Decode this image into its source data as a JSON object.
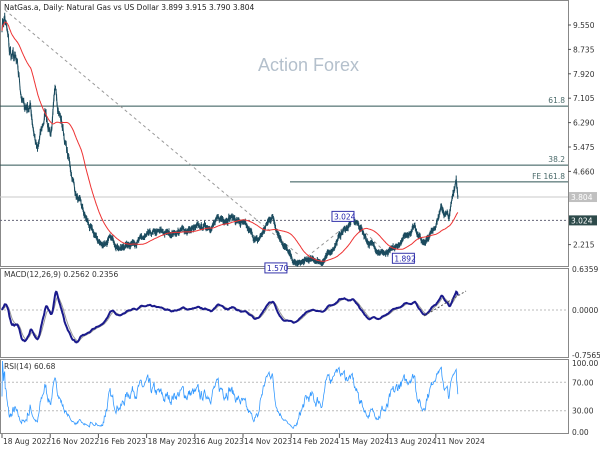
{
  "header": {
    "title": "NatGas.a, Daily:  Natural Gas vs US Dollar  3.899 3.915 3.790 3.804"
  },
  "watermark": "Action Forex",
  "colors": {
    "price": "#1b4b5e",
    "ma": "#ee3333",
    "macd": "#1a1a8c",
    "signal": "#999999",
    "rsi": "#3399ff",
    "level": "#2f5555",
    "current_bg": "#c0c0c0",
    "support_bg": "#2d4a4a"
  },
  "main": {
    "y_ticks": [
      "9.550",
      "8.735",
      "7.920",
      "7.105",
      "6.290",
      "5.475",
      "4.660",
      "2.215"
    ],
    "y_tick_values": [
      9.55,
      8.735,
      7.92,
      7.105,
      6.29,
      5.475,
      4.66,
      2.215
    ],
    "levels": [
      {
        "label": "61.8",
        "value": 6.84
      },
      {
        "label": "38.2",
        "value": 4.87
      },
      {
        "label": "FE 161.8",
        "value": 4.31
      }
    ],
    "current_price": "3.804",
    "support": "3.024",
    "annotations": [
      {
        "label": "3.024",
        "date": "2024-06-11",
        "value": 3.024
      },
      {
        "label": "1.570",
        "date": "2024-02-28",
        "value": 1.57
      },
      {
        "label": "1.892",
        "date": "2024-08-15",
        "value": 1.892
      }
    ]
  },
  "macd": {
    "label": "MACD(12,26,9) 0.2562 0.2356",
    "ticks": [
      "0.6359",
      "0.0000",
      "-0.7565"
    ]
  },
  "rsi": {
    "label": "RSI(14) 60.68",
    "ticks": [
      "100.00",
      "70.00",
      "30.00",
      "0.00"
    ]
  },
  "x_axis": {
    "labels": [
      "18 Aug 2022",
      "16 Nov 2022",
      "16 Feb 2023",
      "18 May 2023",
      "16 Aug 2023",
      "14 Nov 2023",
      "14 Feb 2024",
      "15 May 2024",
      "13 Aug 2024",
      "11 Nov 2024"
    ]
  },
  "chart_data": {
    "type": "line",
    "series": [
      {
        "name": "NatGas.a",
        "points": [
          [
            "2022-08-18",
            9.6
          ],
          [
            "2022-08-23",
            9.9
          ],
          [
            "2022-09-01",
            8.6
          ],
          [
            "2022-09-12",
            8.3
          ],
          [
            "2022-09-28",
            6.8
          ],
          [
            "2022-10-10",
            6.9
          ],
          [
            "2022-10-24",
            5.3
          ],
          [
            "2022-11-08",
            6.6
          ],
          [
            "2022-11-18",
            6.0
          ],
          [
            "2022-11-28",
            7.3
          ],
          [
            "2022-12-10",
            6.2
          ],
          [
            "2022-12-20",
            5.2
          ],
          [
            "2023-01-05",
            3.9
          ],
          [
            "2023-01-20",
            3.2
          ],
          [
            "2023-02-05",
            2.6
          ],
          [
            "2023-02-22",
            2.2
          ],
          [
            "2023-03-10",
            2.4
          ],
          [
            "2023-04-01",
            2.1
          ],
          [
            "2023-04-20",
            2.3
          ],
          [
            "2023-05-10",
            2.4
          ],
          [
            "2023-06-05",
            2.6
          ],
          [
            "2023-07-01",
            2.6
          ],
          [
            "2023-08-01",
            2.7
          ],
          [
            "2023-08-25",
            2.75
          ],
          [
            "2023-09-20",
            2.9
          ],
          [
            "2023-10-22",
            3.2
          ],
          [
            "2023-11-15",
            2.9
          ],
          [
            "2023-12-14",
            2.3
          ],
          [
            "2024-01-10",
            3.2
          ],
          [
            "2024-01-25",
            2.5
          ],
          [
            "2024-02-20",
            1.6
          ],
          [
            "2024-02-28",
            1.57
          ],
          [
            "2024-03-20",
            1.7
          ],
          [
            "2024-04-15",
            1.65
          ],
          [
            "2024-05-01",
            2.0
          ],
          [
            "2024-05-20",
            2.6
          ],
          [
            "2024-06-11",
            3.02
          ],
          [
            "2024-06-25",
            2.8
          ],
          [
            "2024-07-10",
            2.3
          ],
          [
            "2024-08-01",
            2.0
          ],
          [
            "2024-08-15",
            1.9
          ],
          [
            "2024-09-01",
            2.1
          ],
          [
            "2024-09-20",
            2.5
          ],
          [
            "2024-10-05",
            2.9
          ],
          [
            "2024-10-20",
            2.3
          ],
          [
            "2024-11-05",
            2.6
          ],
          [
            "2024-11-25",
            3.4
          ],
          [
            "2024-12-10",
            3.1
          ],
          [
            "2024-12-23",
            4.5
          ],
          [
            "2024-12-27",
            3.804
          ]
        ]
      }
    ],
    "ylim": [
      1.5,
      10.0
    ],
    "macd_ylim": [
      -0.7565,
      0.6359
    ],
    "rsi_ylim": [
      0,
      100
    ]
  }
}
